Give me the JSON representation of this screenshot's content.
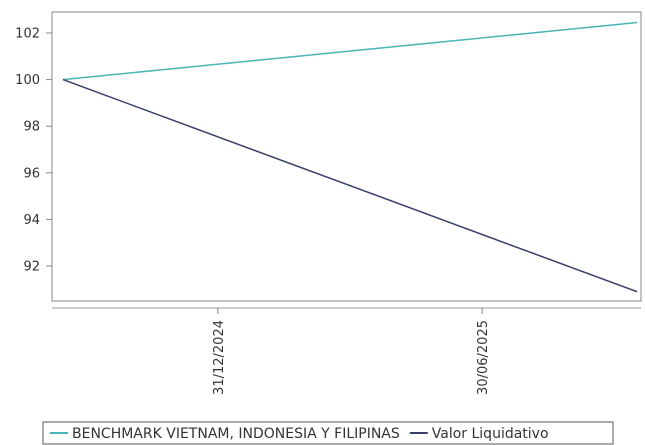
{
  "chart_data": {
    "type": "line",
    "x": [
      "2024-09-16",
      "2025-10-14"
    ],
    "x_ticks": [
      "31/12/2024",
      "30/06/2025"
    ],
    "x_tick_dates": [
      "2024-12-31",
      "2025-06-30"
    ],
    "y_ticks": [
      "92",
      "94",
      "96",
      "98",
      "100",
      "102"
    ],
    "ylim": [
      90.5,
      102.9
    ],
    "series": [
      {
        "name": "BENCHMARK VIETNAM, INDONESIA Y FILIPINAS",
        "values": [
          100.0,
          102.45
        ],
        "color": "#4ab5b5"
      },
      {
        "name": "Valor Liquidativo",
        "values": [
          100.0,
          90.9
        ],
        "color": "#3a3f6b"
      }
    ],
    "grid": false,
    "legend_position": "bottom"
  }
}
